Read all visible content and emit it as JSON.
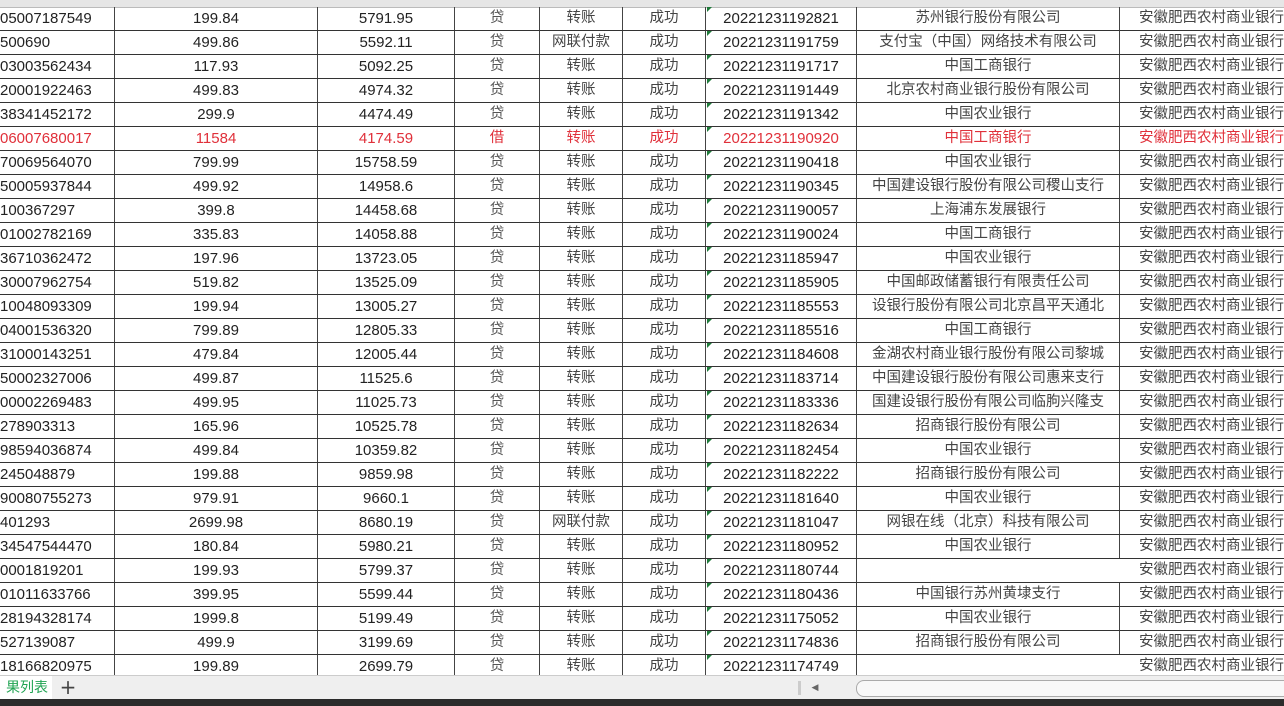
{
  "rows": [
    [
      "05007187549",
      "199.84",
      "5791.95",
      "贷",
      "转账",
      "成功",
      "20221231192821",
      "苏州银行股份有限公司",
      "安徽肥西农村商业银行"
    ],
    [
      "500690",
      "499.86",
      "5592.11",
      "贷",
      "网联付款",
      "成功",
      "20221231191759",
      "支付宝（中国）网络技术有限公司",
      "安徽肥西农村商业银行"
    ],
    [
      "03003562434",
      "117.93",
      "5092.25",
      "贷",
      "转账",
      "成功",
      "20221231191717",
      "中国工商银行",
      "安徽肥西农村商业银行"
    ],
    [
      "20001922463",
      "499.83",
      "4974.32",
      "贷",
      "转账",
      "成功",
      "20221231191449",
      "北京农村商业银行股份有限公司",
      "安徽肥西农村商业银行"
    ],
    [
      "38341452172",
      "299.9",
      "4474.49",
      "贷",
      "转账",
      "成功",
      "20221231191342",
      "中国农业银行",
      "安徽肥西农村商业银行"
    ],
    [
      "06007680017",
      "11584",
      "4174.59",
      "借",
      "转账",
      "成功",
      "20221231190920",
      "中国工商银行",
      "安徽肥西农村商业银行"
    ],
    [
      "70069564070",
      "799.99",
      "15758.59",
      "贷",
      "转账",
      "成功",
      "20221231190418",
      "中国农业银行",
      "安徽肥西农村商业银行"
    ],
    [
      "50005937844",
      "499.92",
      "14958.6",
      "贷",
      "转账",
      "成功",
      "20221231190345",
      "中国建设银行股份有限公司稷山支行",
      "安徽肥西农村商业银行"
    ],
    [
      "100367297",
      "399.8",
      "14458.68",
      "贷",
      "转账",
      "成功",
      "20221231190057",
      "上海浦东发展银行",
      "安徽肥西农村商业银行"
    ],
    [
      "01002782169",
      "335.83",
      "14058.88",
      "贷",
      "转账",
      "成功",
      "20221231190024",
      "中国工商银行",
      "安徽肥西农村商业银行"
    ],
    [
      "36710362472",
      "197.96",
      "13723.05",
      "贷",
      "转账",
      "成功",
      "20221231185947",
      "中国农业银行",
      "安徽肥西农村商业银行"
    ],
    [
      "30007962754",
      "519.82",
      "13525.09",
      "贷",
      "转账",
      "成功",
      "20221231185905",
      "中国邮政储蓄银行有限责任公司",
      "安徽肥西农村商业银行"
    ],
    [
      "10048093309",
      "199.94",
      "13005.27",
      "贷",
      "转账",
      "成功",
      "20221231185553",
      "设银行股份有限公司北京昌平天通北",
      "安徽肥西农村商业银行"
    ],
    [
      "04001536320",
      "799.89",
      "12805.33",
      "贷",
      "转账",
      "成功",
      "20221231185516",
      "中国工商银行",
      "安徽肥西农村商业银行"
    ],
    [
      "31000143251",
      "479.84",
      "12005.44",
      "贷",
      "转账",
      "成功",
      "20221231184608",
      "金湖农村商业银行股份有限公司黎城",
      "安徽肥西农村商业银行"
    ],
    [
      "50002327006",
      "499.87",
      "11525.6",
      "贷",
      "转账",
      "成功",
      "20221231183714",
      "中国建设银行股份有限公司惠来支行",
      "安徽肥西农村商业银行"
    ],
    [
      "00002269483",
      "499.95",
      "11025.73",
      "贷",
      "转账",
      "成功",
      "20221231183336",
      "国建设银行股份有限公司临朐兴隆支",
      "安徽肥西农村商业银行"
    ],
    [
      "278903313",
      "165.96",
      "10525.78",
      "贷",
      "转账",
      "成功",
      "20221231182634",
      "招商银行股份有限公司",
      "安徽肥西农村商业银行"
    ],
    [
      "98594036874",
      "499.84",
      "10359.82",
      "贷",
      "转账",
      "成功",
      "20221231182454",
      "中国农业银行",
      "安徽肥西农村商业银行"
    ],
    [
      "245048879",
      "199.88",
      "9859.98",
      "贷",
      "转账",
      "成功",
      "20221231182222",
      "招商银行股份有限公司",
      "安徽肥西农村商业银行"
    ],
    [
      "90080755273",
      "979.91",
      "9660.1",
      "贷",
      "转账",
      "成功",
      "20221231181640",
      "中国农业银行",
      "安徽肥西农村商业银行"
    ],
    [
      "401293",
      "2699.98",
      "8680.19",
      "贷",
      "网联付款",
      "成功",
      "20221231181047",
      "网银在线（北京）科技有限公司",
      "安徽肥西农村商业银行"
    ],
    [
      "34547544470",
      "180.84",
      "5980.21",
      "贷",
      "转账",
      "成功",
      "20221231180952",
      "中国农业银行",
      "安徽肥西农村商业银行"
    ],
    [
      "0001819201",
      "199.93",
      "5799.37",
      "贷",
      "转账",
      "成功",
      "20221231180744",
      "",
      "安徽肥西农村商业银行"
    ],
    [
      "01011633766",
      "399.95",
      "5599.44",
      "贷",
      "转账",
      "成功",
      "20221231180436",
      "中国银行苏州黄埭支行",
      "安徽肥西农村商业银行"
    ],
    [
      "28194328174",
      "1999.8",
      "5199.49",
      "贷",
      "转账",
      "成功",
      "20221231175052",
      "中国农业银行",
      "安徽肥西农村商业银行"
    ],
    [
      "527139087",
      "499.9",
      "3199.69",
      "贷",
      "转账",
      "成功",
      "20221231174836",
      "招商银行股份有限公司",
      "安徽肥西农村商业银行"
    ],
    [
      "18166820975",
      "199.89",
      "2699.79",
      "贷",
      "转账",
      "成功",
      "20221231174749",
      "",
      "安徽肥西农村商业银行"
    ]
  ],
  "highlighted_row_index": 5,
  "highlight_color": "#e0303a",
  "sheet_tab": {
    "label": "果列表",
    "color": "#21a453"
  },
  "add_sheet_label": "+",
  "scroll_left_icon": "◀"
}
